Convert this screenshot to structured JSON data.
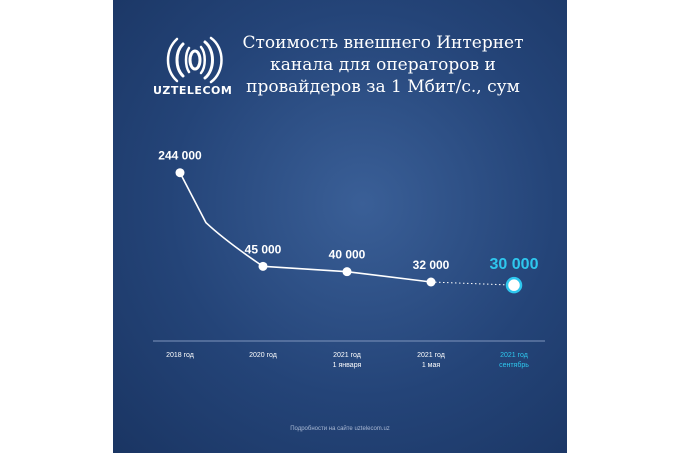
{
  "brand": {
    "name": "UZTELECOM",
    "logo_icon": "uztelecom-signal-logo"
  },
  "header": {
    "title_lines": [
      "Стоимость внешнего Интернет",
      "канала для операторов и",
      "провайдеров за 1 Мбит/с., сум"
    ]
  },
  "footer": {
    "text": "Подробности на сайте uztelecom.uz"
  },
  "colors": {
    "background": "#244478",
    "line": "#ffffff",
    "highlight": "#2ec7ee",
    "axis": "#7f95bd"
  },
  "chart_data": {
    "type": "line",
    "title": "Стоимость внешнего Интернет канала для операторов и провайдеров за 1 Мбит/с., сум",
    "x_labels": [
      [
        "2018 год"
      ],
      [
        "2020 год"
      ],
      [
        "2021 год",
        "1 января"
      ],
      [
        "2021 год",
        "1 мая"
      ],
      [
        "2021 год",
        "сентябрь"
      ]
    ],
    "values": [
      244000,
      45000,
      40000,
      32000,
      30000
    ],
    "value_labels": [
      "244 000",
      "45 000",
      "40 000",
      "32 000",
      "30 000"
    ],
    "highlight_index": 4,
    "last_segment_style": "dotted",
    "ylim": [
      20000,
      260000
    ],
    "grid": false,
    "legend": "none"
  }
}
